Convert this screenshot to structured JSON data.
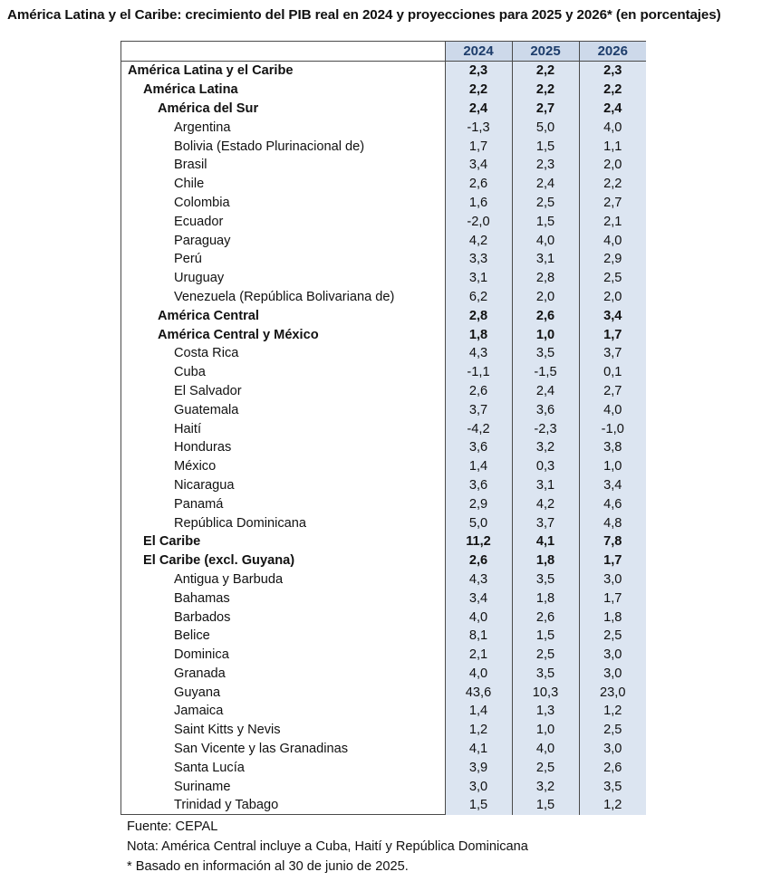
{
  "title": "América Latina y el Caribe: crecimiento del PIB real en 2024 y proyecciones para 2025 y 2026* (en porcentajes)",
  "columns": [
    "2024",
    "2025",
    "2026"
  ],
  "rows": [
    {
      "name": "América Latina y el Caribe",
      "level": 0,
      "values": [
        "2,3",
        "2,2",
        "2,3"
      ]
    },
    {
      "name": "América Latina",
      "level": 1,
      "values": [
        "2,2",
        "2,2",
        "2,2"
      ]
    },
    {
      "name": "América del Sur",
      "level": 2,
      "values": [
        "2,4",
        "2,7",
        "2,4"
      ]
    },
    {
      "name": "Argentina",
      "level": 3,
      "values": [
        "-1,3",
        "5,0",
        "4,0"
      ]
    },
    {
      "name": "Bolivia (Estado Plurinacional de)",
      "level": 3,
      "values": [
        "1,7",
        "1,5",
        "1,1"
      ]
    },
    {
      "name": "Brasil",
      "level": 3,
      "values": [
        "3,4",
        "2,3",
        "2,0"
      ]
    },
    {
      "name": "Chile",
      "level": 3,
      "values": [
        "2,6",
        "2,4",
        "2,2"
      ]
    },
    {
      "name": "Colombia",
      "level": 3,
      "values": [
        "1,6",
        "2,5",
        "2,7"
      ]
    },
    {
      "name": "Ecuador",
      "level": 3,
      "values": [
        "-2,0",
        "1,5",
        "2,1"
      ]
    },
    {
      "name": "Paraguay",
      "level": 3,
      "values": [
        "4,2",
        "4,0",
        "4,0"
      ]
    },
    {
      "name": "Perú",
      "level": 3,
      "values": [
        "3,3",
        "3,1",
        "2,9"
      ]
    },
    {
      "name": "Uruguay",
      "level": 3,
      "values": [
        "3,1",
        "2,8",
        "2,5"
      ]
    },
    {
      "name": "Venezuela (República Bolivariana de)",
      "level": 3,
      "values": [
        "6,2",
        "2,0",
        "2,0"
      ]
    },
    {
      "name": "América Central",
      "level": 2,
      "values": [
        "2,8",
        "2,6",
        "3,4"
      ]
    },
    {
      "name": "América Central y México",
      "level": 2,
      "values": [
        "1,8",
        "1,0",
        "1,7"
      ]
    },
    {
      "name": "Costa Rica",
      "level": 3,
      "values": [
        "4,3",
        "3,5",
        "3,7"
      ]
    },
    {
      "name": "Cuba",
      "level": 3,
      "values": [
        "-1,1",
        "-1,5",
        "0,1"
      ]
    },
    {
      "name": "El Salvador",
      "level": 3,
      "values": [
        "2,6",
        "2,4",
        "2,7"
      ]
    },
    {
      "name": "Guatemala",
      "level": 3,
      "values": [
        "3,7",
        "3,6",
        "4,0"
      ]
    },
    {
      "name": "Haití",
      "level": 3,
      "values": [
        "-4,2",
        "-2,3",
        "-1,0"
      ]
    },
    {
      "name": "Honduras",
      "level": 3,
      "values": [
        "3,6",
        "3,2",
        "3,8"
      ]
    },
    {
      "name": "México",
      "level": 3,
      "values": [
        "1,4",
        "0,3",
        "1,0"
      ]
    },
    {
      "name": "Nicaragua",
      "level": 3,
      "values": [
        "3,6",
        "3,1",
        "3,4"
      ]
    },
    {
      "name": "Panamá",
      "level": 3,
      "values": [
        "2,9",
        "4,2",
        "4,6"
      ]
    },
    {
      "name": "República Dominicana",
      "level": 3,
      "values": [
        "5,0",
        "3,7",
        "4,8"
      ]
    },
    {
      "name": "El Caribe",
      "level": 1,
      "values": [
        "11,2",
        "4,1",
        "7,8"
      ]
    },
    {
      "name": "El Caribe (excl. Guyana)",
      "level": 1,
      "values": [
        "2,6",
        "1,8",
        "1,7"
      ]
    },
    {
      "name": "Antigua y Barbuda",
      "level": 3,
      "values": [
        "4,3",
        "3,5",
        "3,0"
      ]
    },
    {
      "name": "Bahamas",
      "level": 3,
      "values": [
        "3,4",
        "1,8",
        "1,7"
      ]
    },
    {
      "name": "Barbados",
      "level": 3,
      "values": [
        "4,0",
        "2,6",
        "1,8"
      ]
    },
    {
      "name": "Belice",
      "level": 3,
      "values": [
        "8,1",
        "1,5",
        "2,5"
      ]
    },
    {
      "name": "Dominica",
      "level": 3,
      "values": [
        "2,1",
        "2,5",
        "3,0"
      ]
    },
    {
      "name": "Granada",
      "level": 3,
      "values": [
        "4,0",
        "3,5",
        "3,0"
      ]
    },
    {
      "name": "Guyana",
      "level": 3,
      "values": [
        "43,6",
        "10,3",
        "23,0"
      ]
    },
    {
      "name": "Jamaica",
      "level": 3,
      "values": [
        "1,4",
        "1,3",
        "1,2"
      ]
    },
    {
      "name": "Saint Kitts y Nevis",
      "level": 3,
      "values": [
        "1,2",
        "1,0",
        "2,5"
      ]
    },
    {
      "name": "San Vicente y las Granadinas",
      "level": 3,
      "values": [
        "4,1",
        "4,0",
        "3,0"
      ]
    },
    {
      "name": "Santa Lucía",
      "level": 3,
      "values": [
        "3,9",
        "2,5",
        "2,6"
      ]
    },
    {
      "name": "Suriname",
      "level": 3,
      "values": [
        "3,0",
        "3,2",
        "3,5"
      ]
    },
    {
      "name": "Trinidad y Tabago",
      "level": 3,
      "values": [
        "1,5",
        "1,5",
        "1,2"
      ]
    }
  ],
  "notes": {
    "source": "Fuente: CEPAL",
    "note": "Nota: América Central incluye a Cuba, Haití y República Dominicana",
    "footnote": "* Basado en información al 30 de junio de 2025."
  },
  "colors": {
    "header_bg": "#cdd9ea",
    "value_bg": "#dce5f1",
    "header_text": "#1d3d6b"
  }
}
